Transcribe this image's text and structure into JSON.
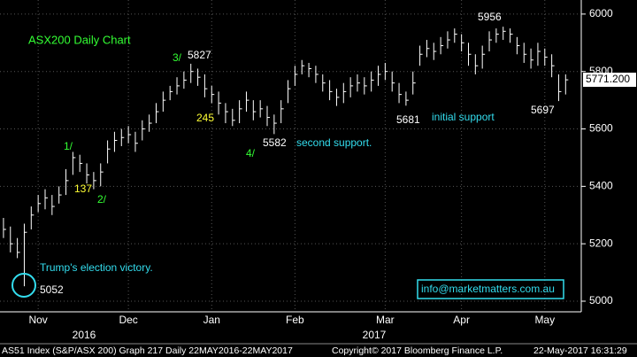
{
  "chart_data": {
    "type": "hlc",
    "color": "#ffffff",
    "high": [
      5290,
      5260,
      5220,
      5270,
      5330,
      5370,
      5390,
      5370,
      5400,
      5460,
      5520,
      5510,
      5480,
      5450,
      5480,
      5560,
      5590,
      5600,
      5610,
      5590,
      5630,
      5650,
      5690,
      5730,
      5750,
      5780,
      5800,
      5827,
      5810,
      5790,
      5750,
      5730,
      5690,
      5670,
      5700,
      5730,
      5700,
      5700,
      5680,
      5650,
      5700,
      5770,
      5820,
      5840,
      5830,
      5820,
      5790,
      5770,
      5740,
      5760,
      5780,
      5790,
      5780,
      5800,
      5820,
      5830,
      5800,
      5760,
      5730,
      5800,
      5890,
      5910,
      5900,
      5920,
      5940,
      5950,
      5930,
      5900,
      5860,
      5890,
      5940,
      5950,
      5956,
      5950,
      5920,
      5900,
      5880,
      5900,
      5880,
      5860,
      5790,
      5790
    ],
    "low": [
      5220,
      5170,
      5150,
      5052,
      5250,
      5310,
      5320,
      5300,
      5340,
      5370,
      5440,
      5450,
      5410,
      5390,
      5400,
      5480,
      5520,
      5540,
      5550,
      5520,
      5560,
      5590,
      5620,
      5660,
      5700,
      5720,
      5740,
      5760,
      5750,
      5710,
      5690,
      5650,
      5620,
      5610,
      5620,
      5660,
      5630,
      5640,
      5610,
      5582,
      5620,
      5690,
      5750,
      5790,
      5780,
      5760,
      5730,
      5700,
      5680,
      5690,
      5710,
      5730,
      5720,
      5730,
      5750,
      5770,
      5730,
      5690,
      5681,
      5720,
      5820,
      5850,
      5840,
      5860,
      5880,
      5900,
      5870,
      5820,
      5790,
      5810,
      5870,
      5900,
      5910,
      5900,
      5860,
      5830,
      5810,
      5820,
      5820,
      5780,
      5697,
      5720
    ],
    "close": [
      5250,
      5200,
      5170,
      5240,
      5300,
      5340,
      5360,
      5330,
      5370,
      5420,
      5500,
      5480,
      5440,
      5420,
      5450,
      5530,
      5560,
      5570,
      5580,
      5550,
      5600,
      5620,
      5660,
      5700,
      5730,
      5750,
      5770,
      5800,
      5780,
      5740,
      5720,
      5690,
      5660,
      5630,
      5670,
      5700,
      5660,
      5670,
      5640,
      5620,
      5670,
      5740,
      5790,
      5820,
      5810,
      5790,
      5760,
      5730,
      5710,
      5730,
      5750,
      5760,
      5750,
      5770,
      5790,
      5800,
      5760,
      5720,
      5700,
      5760,
      5860,
      5880,
      5870,
      5890,
      5910,
      5930,
      5900,
      5860,
      5820,
      5860,
      5910,
      5930,
      5940,
      5930,
      5890,
      5860,
      5840,
      5870,
      5850,
      5820,
      5730,
      5771
    ],
    "xlim": [
      -0.5,
      83
    ],
    "xticks": [
      {
        "value": 5,
        "label": "Nov"
      },
      {
        "value": 18,
        "label": "Dec"
      },
      {
        "value": 30,
        "label": "Jan"
      },
      {
        "value": 42,
        "label": "Feb"
      },
      {
        "value": 55,
        "label": "Mar"
      },
      {
        "value": 66,
        "label": "Apr"
      },
      {
        "value": 78,
        "label": "May"
      }
    ],
    "years": [
      "2016",
      "2017"
    ],
    "ylim": [
      4963,
      6049
    ],
    "yticks": [
      5000,
      5200,
      5400,
      5600,
      5800,
      6000
    ],
    "grid": true,
    "last_value": {
      "value": 5771.2,
      "label": "5771.200"
    },
    "annotations": [
      "ASX200 Daily Chart",
      "3/",
      "5827",
      "1/",
      "137",
      "2/",
      "245",
      "4/",
      "5582",
      "second support.",
      "5681",
      "initial support",
      "5956",
      "5697",
      "Trump's election victory.",
      "5052",
      "info@marketmatters.com.au"
    ],
    "footer": [
      "AS51 Index (S&P/ASX 200) Graph 217  Daily 22MAY2016-22MAY2017",
      "Copyright© 2017 Bloomberg Finance L.P.",
      "22-May-2017 16:31:29"
    ]
  }
}
